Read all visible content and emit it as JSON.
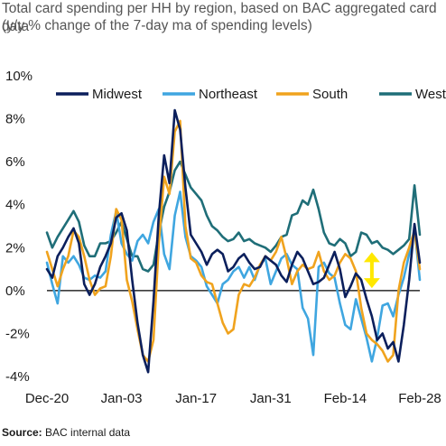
{
  "header": {
    "title": "Total card spending per HH by region, based on BAC aggregated card data",
    "subtitle": "(y/y % change of the 7-day ma of spending levels)"
  },
  "footer": {
    "source_label": "Source:",
    "source_text": " BAC internal data"
  },
  "colors": {
    "Midwest": "#0b1f5c",
    "Northeast": "#3fa6e0",
    "South": "#f0a31e",
    "West": "#1f6e78",
    "annotation": "#ffe800"
  },
  "chart_data": {
    "type": "line",
    "title": "Total card spending per HH by region, based on BAC aggregated card data",
    "subtitle": "(y/y % change of the 7-day ma of spending levels)",
    "xlabel": "",
    "ylabel": "",
    "ylim": [
      -4,
      10
    ],
    "yticks": [
      10,
      8,
      6,
      4,
      2,
      0,
      -2,
      -4
    ],
    "ytick_labels": [
      "10%",
      "8%",
      "6%",
      "4%",
      "2%",
      "0%",
      "-2%",
      "-4%"
    ],
    "x_tick_labels": [
      "Dec-20",
      "Jan-03",
      "Jan-17",
      "Jan-31",
      "Feb-14",
      "Feb-28"
    ],
    "x_tick_index": [
      0,
      14,
      28,
      42,
      56,
      70
    ],
    "x_count": 71,
    "legend_position": "top",
    "grid": false,
    "series": [
      {
        "name": "Midwest",
        "values": [
          1.0,
          0.6,
          1.6,
          2.0,
          2.5,
          2.9,
          2.2,
          0.3,
          -0.2,
          0.3,
          1.1,
          1.6,
          2.2,
          3.4,
          3.6,
          2.8,
          0.5,
          -1.5,
          -3.0,
          -3.8,
          -0.5,
          3.5,
          6.3,
          5.0,
          8.4,
          7.5,
          4.8,
          2.6,
          2.2,
          1.8,
          1.2,
          1.7,
          1.9,
          1.7,
          0.9,
          1.1,
          1.5,
          1.7,
          1.3,
          1.0,
          1.1,
          1.6,
          1.4,
          1.2,
          0.7,
          0.4,
          1.2,
          1.8,
          1.5,
          0.9,
          0.3,
          0.4,
          0.6,
          1.2,
          1.8,
          1.0,
          -0.3,
          0.2,
          0.8,
          0.5,
          -0.4,
          -1.2,
          -2.3,
          -2.0,
          -2.7,
          -2.4,
          -3.3,
          -1.6,
          0.5,
          3.1,
          1.3
        ]
      },
      {
        "name": "Northeast",
        "values": [
          1.3,
          0.3,
          -0.6,
          1.6,
          1.3,
          1.6,
          1.2,
          0.6,
          0.5,
          0.7,
          0.6,
          0.9,
          2.6,
          3.7,
          2.2,
          1.7,
          1.4,
          2.3,
          2.6,
          2.2,
          3.2,
          3.8,
          1.7,
          1.0,
          3.5,
          4.6,
          2.5,
          1.6,
          1.4,
          1.1,
          0.2,
          -0.2,
          -0.6,
          0.3,
          0.5,
          0.9,
          1.1,
          0.6,
          1.1,
          0.5,
          1.2,
          1.5,
          0.3,
          0.9,
          1.5,
          1.7,
          1.2,
          1.0,
          -0.8,
          -1.3,
          -3.0,
          1.1,
          1.3,
          0.8,
          0.6,
          -0.6,
          -1.6,
          -1.8,
          -0.4,
          -1.3,
          -2.2,
          -3.3,
          -2.2,
          -0.7,
          -0.6,
          -1.2,
          -0.2,
          0.6,
          1.7,
          2.9,
          0.5
        ]
      },
      {
        "name": "South",
        "values": [
          1.8,
          1.0,
          0.2,
          1.0,
          1.6,
          2.8,
          2.5,
          1.6,
          0.5,
          -0.2,
          0.1,
          0.2,
          1.6,
          3.8,
          3.3,
          0.5,
          -0.5,
          -1.8,
          -3.0,
          -3.3,
          -2.3,
          2.2,
          5.3,
          4.5,
          7.4,
          7.9,
          3.0,
          1.5,
          1.3,
          0.7,
          0.4,
          0.3,
          -0.6,
          -1.5,
          -2.0,
          -1.8,
          -0.2,
          0.3,
          0.2,
          0.6,
          1.2,
          1.6,
          1.4,
          1.8,
          2.5,
          1.5,
          0.3,
          0.9,
          1.2,
          1.0,
          1.1,
          1.8,
          0.9,
          0.5,
          0.7,
          1.3,
          1.7,
          1.5,
          0.9,
          -0.8,
          -2.0,
          -2.3,
          -2.5,
          -2.8,
          -3.3,
          -3.0,
          0.0,
          1.3,
          2.0,
          2.8,
          1.0
        ]
      },
      {
        "name": "West",
        "values": [
          2.7,
          2.0,
          2.5,
          2.9,
          3.3,
          3.7,
          3.2,
          2.1,
          1.6,
          1.6,
          2.2,
          2.2,
          2.3,
          2.7,
          3.2,
          2.4,
          1.6,
          1.6,
          1.0,
          0.9,
          1.2,
          2.7,
          3.9,
          4.6,
          5.6,
          6.0,
          5.4,
          4.8,
          4.5,
          4.2,
          3.5,
          3.0,
          2.8,
          2.5,
          2.3,
          2.4,
          2.7,
          2.3,
          2.4,
          2.2,
          2.1,
          2.0,
          1.8,
          2.1,
          2.5,
          2.6,
          3.5,
          3.6,
          4.2,
          4.0,
          4.7,
          3.8,
          2.7,
          2.2,
          2.1,
          2.4,
          2.2,
          1.6,
          1.8,
          2.7,
          2.6,
          2.2,
          2.3,
          2.0,
          1.9,
          1.7,
          1.9,
          2.1,
          2.4,
          4.9,
          2.6
        ]
      }
    ],
    "annotation": {
      "type": "double-arrow",
      "x_index": 61,
      "y_from": 1.7,
      "y_to": 0.2
    }
  }
}
